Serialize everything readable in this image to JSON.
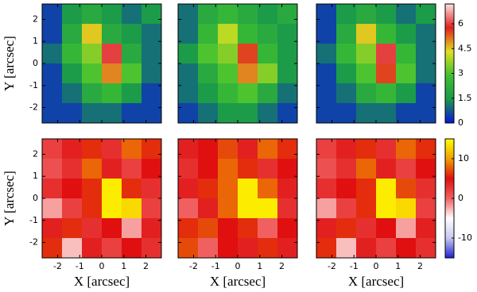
{
  "chart_data": [
    {
      "type": "heatmap",
      "xlim": [
        -2.7,
        2.7
      ],
      "ylim": [
        -2.7,
        2.7
      ],
      "xticks": [
        -2,
        -1,
        0,
        1,
        2
      ],
      "yticks": [
        -2,
        -1,
        0,
        1,
        2
      ],
      "ylabel": "Y [arcsec]",
      "values": [
        [
          0.5,
          1.5,
          2,
          1.5,
          1,
          1.5
        ],
        [
          0.5,
          2,
          4.5,
          2,
          1.5,
          1
        ],
        [
          1,
          2.5,
          3.5,
          6,
          2,
          1
        ],
        [
          0.5,
          1.5,
          3,
          5,
          3,
          1
        ],
        [
          0.5,
          1,
          2,
          2.5,
          1.5,
          0.5
        ],
        [
          0.5,
          0.5,
          1,
          1,
          0.5,
          0.5
        ]
      ]
    },
    {
      "type": "heatmap",
      "xlim": [
        -2.7,
        2.7
      ],
      "ylim": [
        -2.7,
        2.7
      ],
      "xticks": [
        -2,
        -1,
        0,
        1,
        2
      ],
      "yticks": [
        -2,
        -1,
        0,
        1,
        2
      ],
      "values": [
        [
          1,
          2,
          2.5,
          2,
          1.5,
          2
        ],
        [
          1,
          2.5,
          4,
          2.5,
          2,
          1.5
        ],
        [
          1.5,
          3,
          3.5,
          5.5,
          2.5,
          1.5
        ],
        [
          1,
          2,
          3,
          5,
          3.5,
          1.5
        ],
        [
          1,
          1.5,
          2.5,
          3,
          2,
          1
        ],
        [
          0.5,
          1,
          1.5,
          1.5,
          1,
          0.5
        ]
      ]
    },
    {
      "type": "heatmap",
      "xlim": [
        -2.7,
        2.7
      ],
      "ylim": [
        -2.7,
        2.7
      ],
      "xticks": [
        -2,
        -1,
        0,
        1,
        2
      ],
      "yticks": [
        -2,
        -1,
        0,
        1,
        2
      ],
      "values": [
        [
          0.5,
          1.5,
          2,
          1.5,
          1,
          1.5
        ],
        [
          0.5,
          2,
          4.5,
          2.5,
          1.5,
          1
        ],
        [
          1,
          2.5,
          3.5,
          6,
          2.5,
          1
        ],
        [
          0.5,
          1.5,
          3,
          5.5,
          3,
          1
        ],
        [
          0.5,
          1,
          2,
          2.5,
          1.5,
          0.5
        ],
        [
          0.5,
          0.5,
          1,
          1,
          0.5,
          0.5
        ]
      ]
    },
    {
      "type": "heatmap",
      "xlim": [
        -2.7,
        2.7
      ],
      "ylim": [
        -2.7,
        2.7
      ],
      "xticks": [
        -2,
        -1,
        0,
        1,
        2
      ],
      "yticks": [
        -2,
        -1,
        0,
        1,
        2
      ],
      "xlabel": "X [arcsec]",
      "ylabel": "Y [arcsec]",
      "values": [
        [
          2,
          4,
          6,
          3,
          8,
          6
        ],
        [
          1,
          3,
          8,
          4,
          2,
          5
        ],
        [
          3,
          5,
          6,
          14,
          6,
          3
        ],
        [
          -2,
          2,
          6,
          14,
          13,
          2
        ],
        [
          4,
          6,
          3,
          5,
          -2,
          4
        ],
        [
          6,
          -3,
          4,
          2,
          5,
          3
        ]
      ]
    },
    {
      "type": "heatmap",
      "xlim": [
        -2.7,
        2.7
      ],
      "ylim": [
        -2.7,
        2.7
      ],
      "xticks": [
        -2,
        -1,
        0,
        1,
        2
      ],
      "yticks": [
        -2,
        -1,
        0,
        1,
        2
      ],
      "xlabel": "X [arcsec]",
      "values": [
        [
          4,
          5,
          7,
          4,
          8,
          6
        ],
        [
          3,
          5,
          8,
          6,
          3,
          5
        ],
        [
          4,
          6,
          8,
          14,
          8,
          4
        ],
        [
          0,
          4,
          8,
          14,
          14,
          3
        ],
        [
          6,
          7,
          5,
          6,
          0,
          5
        ],
        [
          7,
          0,
          5,
          4,
          6,
          4
        ]
      ]
    },
    {
      "type": "heatmap",
      "xlim": [
        -2.7,
        2.7
      ],
      "ylim": [
        -2.7,
        2.7
      ],
      "xticks": [
        -2,
        -1,
        0,
        1,
        2
      ],
      "yticks": [
        -2,
        -1,
        0,
        1,
        2
      ],
      "xlabel": "X [arcsec]",
      "values": [
        [
          2,
          4,
          6,
          3,
          8,
          6
        ],
        [
          1,
          3,
          8,
          4,
          2,
          5
        ],
        [
          3,
          5,
          6,
          14,
          7,
          3
        ],
        [
          -2,
          2,
          6,
          14,
          13,
          2
        ],
        [
          4,
          6,
          3,
          5,
          -2,
          4
        ],
        [
          6,
          -3,
          4,
          2,
          5,
          3
        ]
      ]
    },
    {
      "type": "colorbar",
      "ylim": [
        0,
        7.2
      ],
      "yticks": [
        0,
        1.5,
        3,
        4.5,
        6
      ],
      "colormap": [
        "#0a14d8",
        "#1a9a4a",
        "#40c030",
        "#e0e020",
        "#e02020",
        "#ffe0e0"
      ]
    },
    {
      "type": "colorbar",
      "ylim": [
        -15,
        15
      ],
      "yticks": [
        -10,
        0,
        10
      ],
      "colormap": [
        "#2020d0",
        "#c8c8f0",
        "#ffffff",
        "#f06060",
        "#e01010",
        "#f0a000",
        "#ffff00"
      ]
    }
  ]
}
